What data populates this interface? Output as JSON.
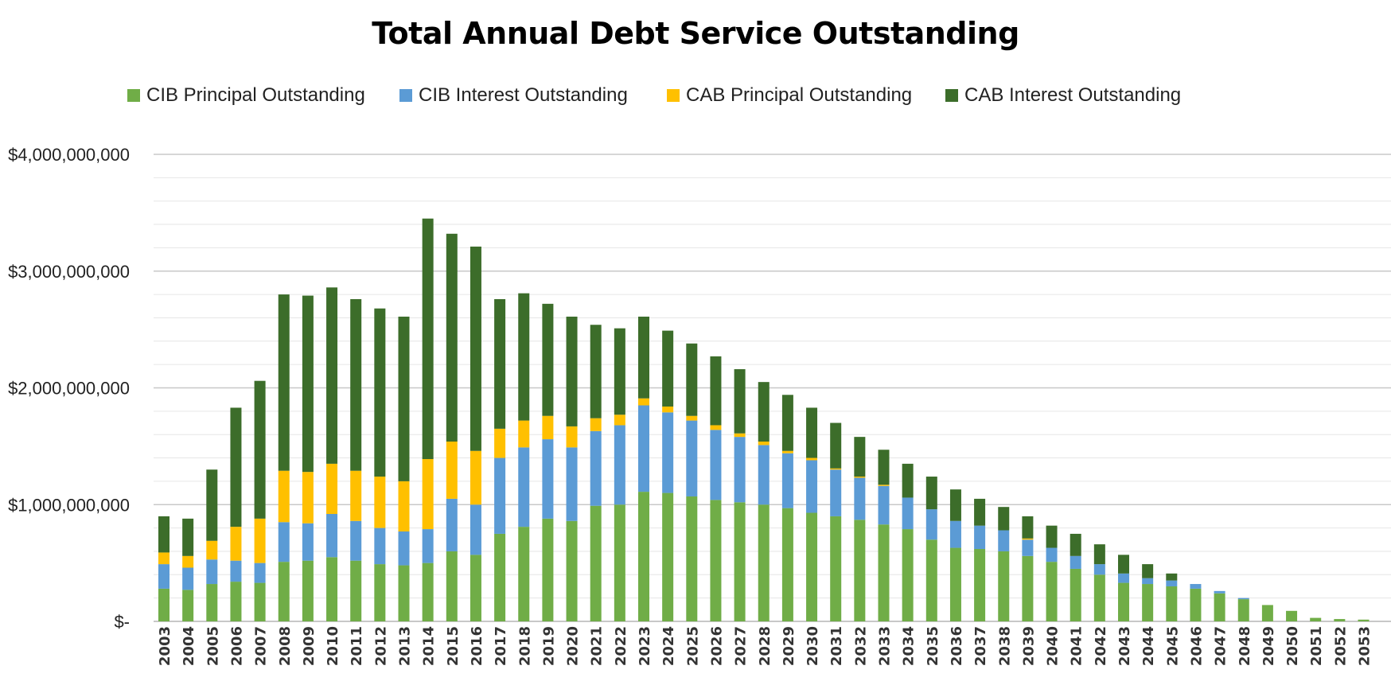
{
  "chart_data": {
    "type": "bar",
    "stacked": true,
    "title": "Total Annual Debt Service Outstanding",
    "xlabel": "",
    "ylabel": "",
    "ylim": [
      0,
      4000000000
    ],
    "yticks": [
      0,
      1000000000,
      2000000000,
      3000000000,
      4000000000
    ],
    "ytick_labels": [
      "$-",
      "$1,000,000,000",
      "$2,000,000,000",
      "$3,000,000,000",
      "$4,000,000,000"
    ],
    "grid": true,
    "legend_position": "top",
    "categories": [
      "2003",
      "2004",
      "2005",
      "2006",
      "2007",
      "2008",
      "2009",
      "2010",
      "2011",
      "2012",
      "2013",
      "2014",
      "2015",
      "2016",
      "2017",
      "2018",
      "2019",
      "2020",
      "2021",
      "2022",
      "2023",
      "2024",
      "2025",
      "2026",
      "2027",
      "2028",
      "2029",
      "2030",
      "2031",
      "2032",
      "2033",
      "2034",
      "2035",
      "2036",
      "2037",
      "2038",
      "2039",
      "2040",
      "2041",
      "2042",
      "2043",
      "2044",
      "2045",
      "2046",
      "2047",
      "2048",
      "2049",
      "2050",
      "2051",
      "2052",
      "2053"
    ],
    "series": [
      {
        "name": "CIB Principal Outstanding",
        "color": "#70AD47",
        "values": [
          280000000,
          270000000,
          320000000,
          340000000,
          330000000,
          510000000,
          520000000,
          550000000,
          520000000,
          490000000,
          480000000,
          500000000,
          600000000,
          570000000,
          750000000,
          810000000,
          880000000,
          860000000,
          990000000,
          1000000000,
          1110000000,
          1100000000,
          1070000000,
          1040000000,
          1020000000,
          1000000000,
          970000000,
          930000000,
          900000000,
          870000000,
          830000000,
          790000000,
          700000000,
          630000000,
          620000000,
          600000000,
          560000000,
          510000000,
          450000000,
          400000000,
          330000000,
          320000000,
          300000000,
          280000000,
          240000000,
          190000000,
          140000000,
          90000000,
          30000000,
          20000000,
          15000000
        ]
      },
      {
        "name": "CIB Interest Outstanding",
        "color": "#5B9BD5",
        "values": [
          210000000,
          190000000,
          210000000,
          180000000,
          170000000,
          340000000,
          320000000,
          370000000,
          340000000,
          310000000,
          290000000,
          290000000,
          450000000,
          430000000,
          650000000,
          680000000,
          680000000,
          630000000,
          640000000,
          680000000,
          740000000,
          690000000,
          650000000,
          600000000,
          560000000,
          510000000,
          470000000,
          450000000,
          400000000,
          360000000,
          330000000,
          270000000,
          260000000,
          230000000,
          200000000,
          180000000,
          140000000,
          120000000,
          110000000,
          90000000,
          80000000,
          50000000,
          50000000,
          40000000,
          20000000,
          10000000,
          0,
          0,
          0,
          0,
          0
        ]
      },
      {
        "name": "CAB Principal Outstanding",
        "color": "#FFC000",
        "values": [
          100000000,
          100000000,
          160000000,
          290000000,
          380000000,
          440000000,
          440000000,
          430000000,
          430000000,
          440000000,
          430000000,
          600000000,
          490000000,
          460000000,
          250000000,
          230000000,
          200000000,
          180000000,
          110000000,
          90000000,
          60000000,
          50000000,
          40000000,
          40000000,
          30000000,
          30000000,
          20000000,
          20000000,
          10000000,
          10000000,
          10000000,
          0,
          0,
          0,
          0,
          0,
          10000000,
          0,
          0,
          0,
          0,
          0,
          0,
          0,
          0,
          0,
          0,
          0,
          0,
          0,
          0
        ]
      },
      {
        "name": "CAB Interest Outstanding",
        "color": "#3C6D2A",
        "values": [
          310000000,
          320000000,
          610000000,
          1020000000,
          1180000000,
          1510000000,
          1510000000,
          1510000000,
          1470000000,
          1440000000,
          1410000000,
          2060000000,
          1780000000,
          1750000000,
          1110000000,
          1090000000,
          960000000,
          940000000,
          800000000,
          740000000,
          700000000,
          650000000,
          620000000,
          590000000,
          550000000,
          510000000,
          480000000,
          430000000,
          390000000,
          340000000,
          300000000,
          290000000,
          280000000,
          270000000,
          230000000,
          200000000,
          190000000,
          190000000,
          190000000,
          170000000,
          160000000,
          120000000,
          60000000,
          0,
          0,
          0,
          0,
          0,
          0,
          0,
          0
        ]
      }
    ]
  }
}
